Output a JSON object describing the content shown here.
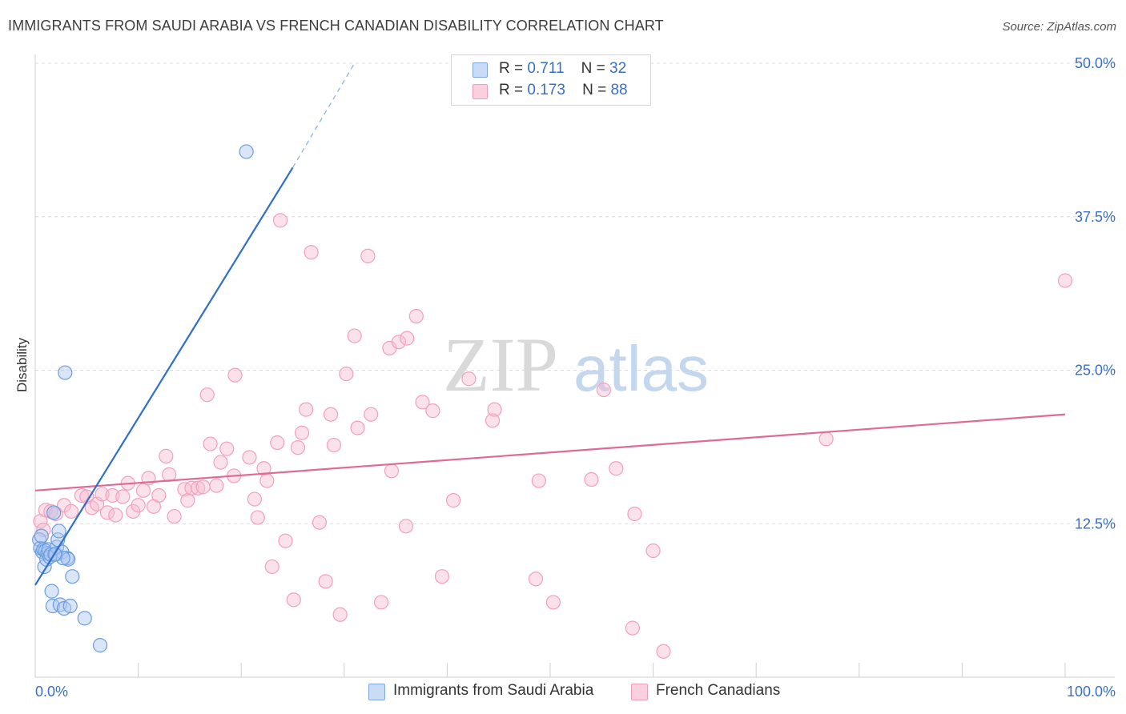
{
  "header": {
    "title": "IMMIGRANTS FROM SAUDI ARABIA VS FRENCH CANADIAN DISABILITY CORRELATION CHART",
    "source": "Source: ZipAtlas.com"
  },
  "watermark": {
    "zip": "ZIP",
    "atlas": "atlas"
  },
  "legend_top": [
    {
      "r_label": "R =",
      "r_value": "0.711",
      "n_label": "N =",
      "n_value": "32",
      "color": "#aec8f0"
    },
    {
      "r_label": "R =",
      "r_value": "0.173",
      "n_label": "N =",
      "n_value": "88",
      "color": "#f7bcd0"
    }
  ],
  "legend_bottom": [
    {
      "label": "Immigrants from Saudi Arabia",
      "color": "#aec8f0"
    },
    {
      "label": "French Canadians",
      "color": "#f7bcd0"
    }
  ],
  "chart_data": {
    "type": "scatter",
    "title": "IMMIGRANTS FROM SAUDI ARABIA VS FRENCH CANADIAN DISABILITY CORRELATION CHART",
    "xlabel": "",
    "ylabel": "Disability",
    "xlim": [
      0,
      100
    ],
    "ylim": [
      0,
      50
    ],
    "x_tick_labels": [
      "0.0%",
      "100.0%"
    ],
    "y_ticks": [
      12.5,
      25.0,
      37.5,
      50.0
    ],
    "y_tick_labels": [
      "12.5%",
      "25.0%",
      "37.5%",
      "50.0%"
    ],
    "grid": true,
    "legend_position": "top-center",
    "series": [
      {
        "name": "Immigrants from Saudi Arabia",
        "color": "#6a9de0",
        "line_color": "#2f6fcc",
        "trend": {
          "x0": 0,
          "y0": 7.5,
          "x1": 25,
          "y1": 41.5,
          "dashed_to_x": 31,
          "dashed_to_y": 50
        },
        "points": [
          [
            0.4,
            11.2
          ],
          [
            0.5,
            10.5
          ],
          [
            0.6,
            11.5
          ],
          [
            0.7,
            10.2
          ],
          [
            0.8,
            10.4
          ],
          [
            0.9,
            9.0
          ],
          [
            1.0,
            10.3
          ],
          [
            1.1,
            9.6
          ],
          [
            1.2,
            10.1
          ],
          [
            1.3,
            10.4
          ],
          [
            1.4,
            9.8
          ],
          [
            1.5,
            10.0
          ],
          [
            1.6,
            7.0
          ],
          [
            1.7,
            5.8
          ],
          [
            1.8,
            13.4
          ],
          [
            2.0,
            10.0
          ],
          [
            2.1,
            10.6
          ],
          [
            2.2,
            11.2
          ],
          [
            2.3,
            11.9
          ],
          [
            2.4,
            5.9
          ],
          [
            2.6,
            10.2
          ],
          [
            2.8,
            5.6
          ],
          [
            2.9,
            24.8
          ],
          [
            3.1,
            9.7
          ],
          [
            3.2,
            9.6
          ],
          [
            3.4,
            5.8
          ],
          [
            3.6,
            8.2
          ],
          [
            4.8,
            4.8
          ],
          [
            6.3,
            2.6
          ],
          [
            20.5,
            42.8
          ],
          [
            2.7,
            9.7
          ],
          [
            1.9,
            10.0
          ]
        ]
      },
      {
        "name": "French Canadians",
        "color": "#f2a0bb",
        "line_color": "#e06a96",
        "trend": {
          "x0": 0,
          "y0": 15.2,
          "x1": 100,
          "y1": 21.4
        },
        "points": [
          [
            0.5,
            12.7
          ],
          [
            0.8,
            12.0
          ],
          [
            1.0,
            13.6
          ],
          [
            1.5,
            13.5
          ],
          [
            2.0,
            13.3
          ],
          [
            2.8,
            14.0
          ],
          [
            3.5,
            13.5
          ],
          [
            4.5,
            14.8
          ],
          [
            5.0,
            14.7
          ],
          [
            5.5,
            13.8
          ],
          [
            6.0,
            14.1
          ],
          [
            6.5,
            14.9
          ],
          [
            7.0,
            13.4
          ],
          [
            7.5,
            14.8
          ],
          [
            7.8,
            13.2
          ],
          [
            8.5,
            14.7
          ],
          [
            9.0,
            15.8
          ],
          [
            9.5,
            13.5
          ],
          [
            10.0,
            14.0
          ],
          [
            10.5,
            15.2
          ],
          [
            11.0,
            16.2
          ],
          [
            11.5,
            13.9
          ],
          [
            12.0,
            14.8
          ],
          [
            12.7,
            18.0
          ],
          [
            13.0,
            16.5
          ],
          [
            13.5,
            13.1
          ],
          [
            14.5,
            15.3
          ],
          [
            14.8,
            14.4
          ],
          [
            15.2,
            15.4
          ],
          [
            15.8,
            15.4
          ],
          [
            16.3,
            15.5
          ],
          [
            16.7,
            23.0
          ],
          [
            17.0,
            19.0
          ],
          [
            17.6,
            15.6
          ],
          [
            18.0,
            17.5
          ],
          [
            18.6,
            18.6
          ],
          [
            19.3,
            16.4
          ],
          [
            19.4,
            24.6
          ],
          [
            20.8,
            17.9
          ],
          [
            21.3,
            14.5
          ],
          [
            21.6,
            13.0
          ],
          [
            22.2,
            17.0
          ],
          [
            22.5,
            16.0
          ],
          [
            23.0,
            9.0
          ],
          [
            23.5,
            19.1
          ],
          [
            23.8,
            37.2
          ],
          [
            24.3,
            11.1
          ],
          [
            25.1,
            6.3
          ],
          [
            25.5,
            18.7
          ],
          [
            25.9,
            19.9
          ],
          [
            26.3,
            21.8
          ],
          [
            26.8,
            34.6
          ],
          [
            27.6,
            12.6
          ],
          [
            28.2,
            7.8
          ],
          [
            28.7,
            21.4
          ],
          [
            29.0,
            18.9
          ],
          [
            29.6,
            5.1
          ],
          [
            30.2,
            24.7
          ],
          [
            31.0,
            27.8
          ],
          [
            31.3,
            20.3
          ],
          [
            32.3,
            34.3
          ],
          [
            32.6,
            21.4
          ],
          [
            33.6,
            6.1
          ],
          [
            34.4,
            26.8
          ],
          [
            34.6,
            16.8
          ],
          [
            35.3,
            27.3
          ],
          [
            36.0,
            12.3
          ],
          [
            36.1,
            27.6
          ],
          [
            37.0,
            29.4
          ],
          [
            37.6,
            22.4
          ],
          [
            38.6,
            21.7
          ],
          [
            39.5,
            8.2
          ],
          [
            40.6,
            14.4
          ],
          [
            42.1,
            24.3
          ],
          [
            44.4,
            20.9
          ],
          [
            44.6,
            21.8
          ],
          [
            48.6,
            8.0
          ],
          [
            48.9,
            16.0
          ],
          [
            50.3,
            6.1
          ],
          [
            54.0,
            16.1
          ],
          [
            56.4,
            17.0
          ],
          [
            55.2,
            23.4
          ],
          [
            58.2,
            13.3
          ],
          [
            60.0,
            10.3
          ],
          [
            58.0,
            4.0
          ],
          [
            61.0,
            2.1
          ],
          [
            76.8,
            19.4
          ],
          [
            100.0,
            32.3
          ]
        ]
      }
    ]
  }
}
